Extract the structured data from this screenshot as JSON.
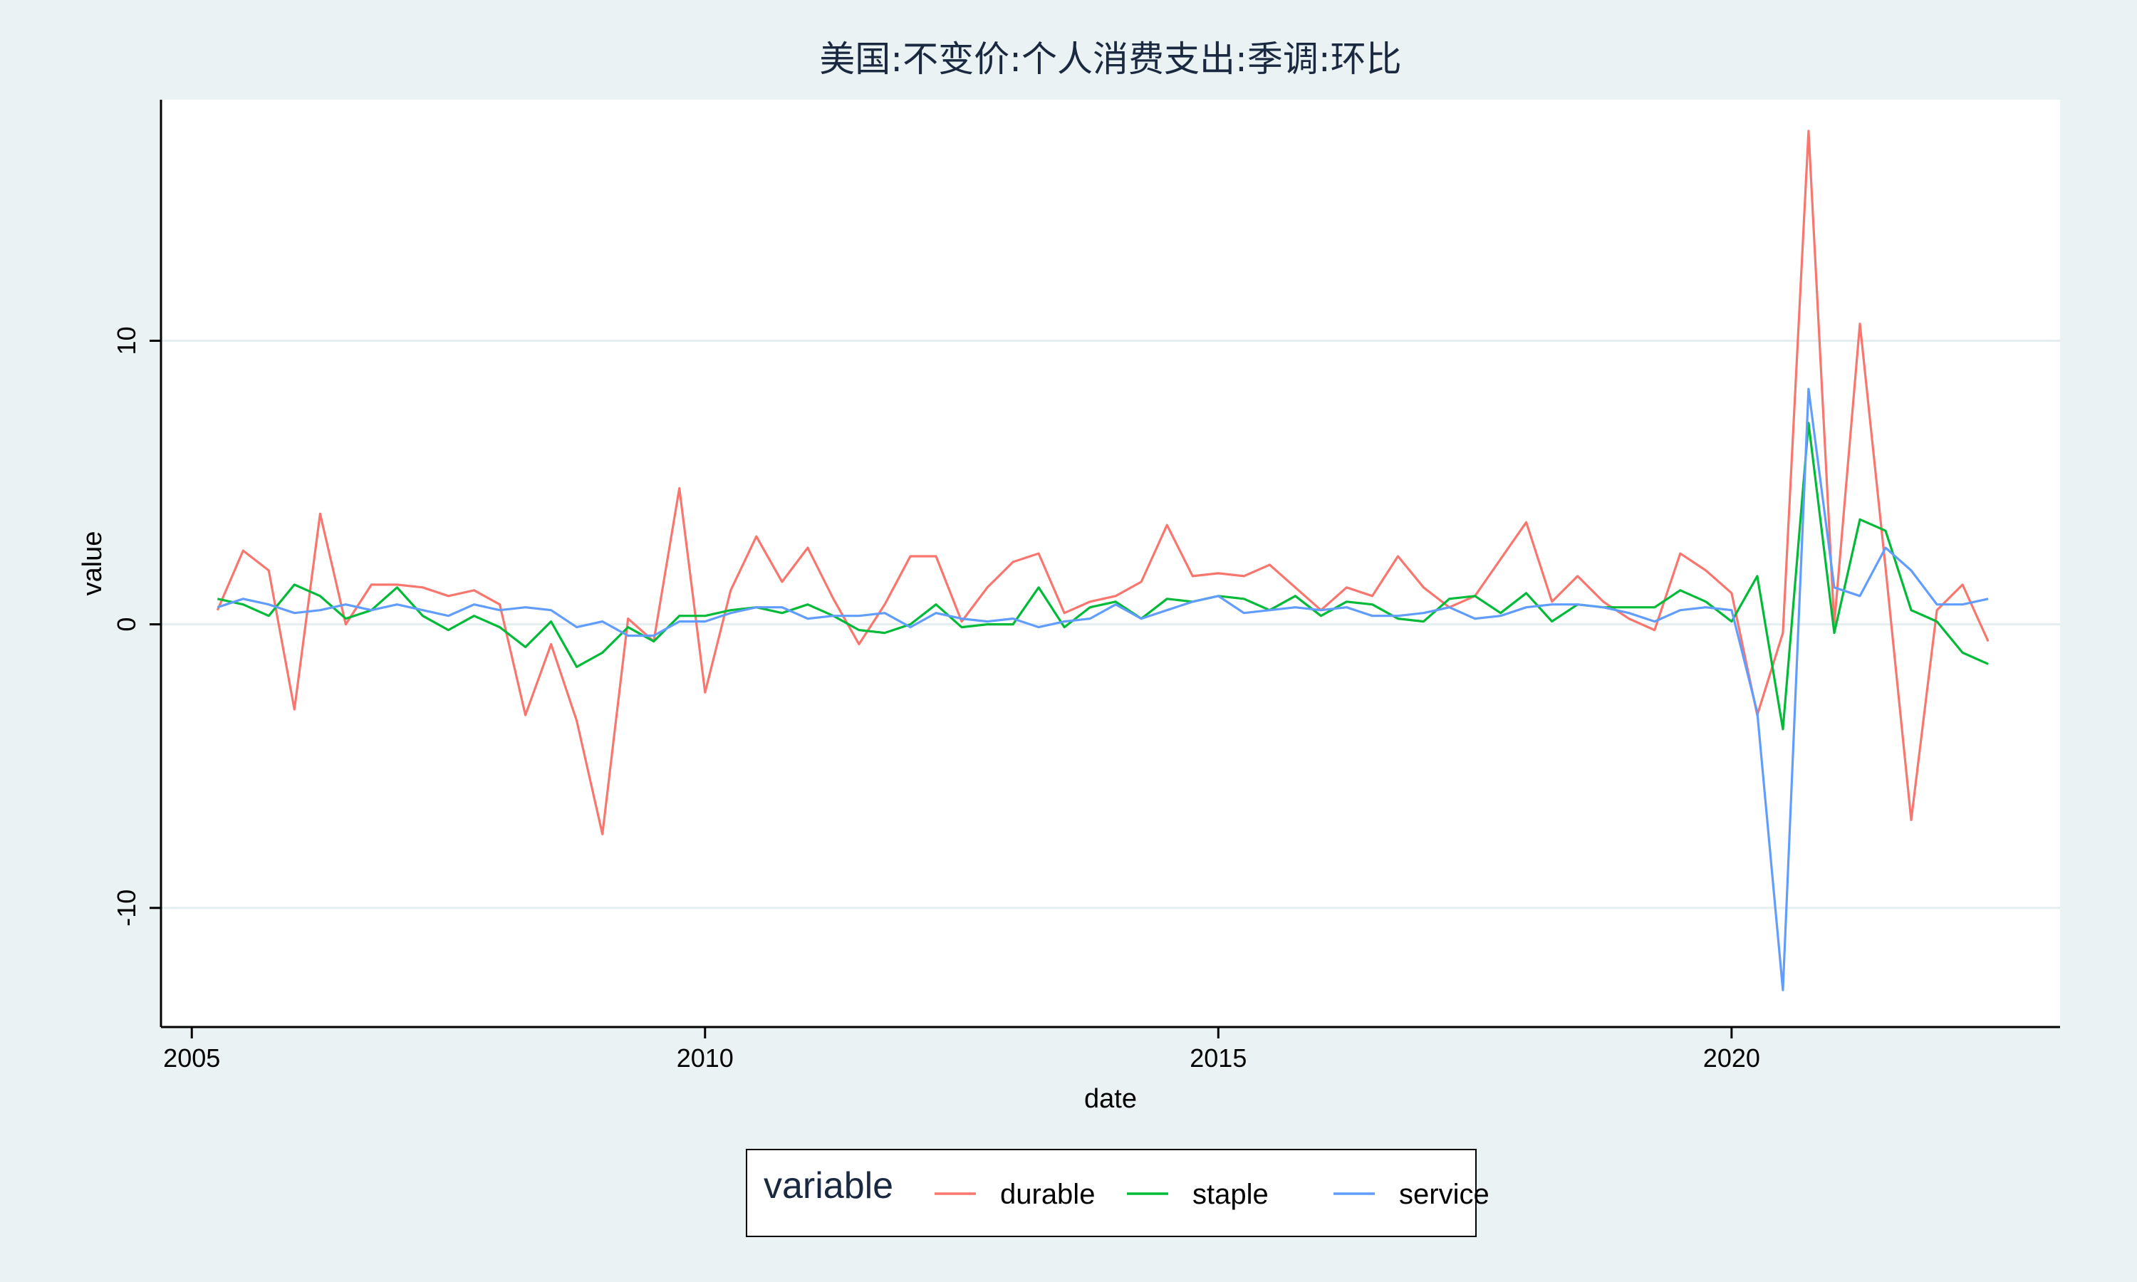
{
  "chart_data": {
    "type": "line",
    "title": "美国:不变价:个人消费支出:季调:环比",
    "xlabel": "date",
    "ylabel": "value",
    "xlim": [
      2004.7,
      2023.2
    ],
    "ylim": [
      -14.2,
      18.5
    ],
    "x_ticks": [
      2005,
      2010,
      2015,
      2020
    ],
    "y_ticks": [
      -10,
      0,
      10
    ],
    "grid": "horizontal",
    "legend": {
      "title": "variable",
      "placement": "bottom-center"
    },
    "x": [
      2005.25,
      2005.5,
      2005.75,
      2006.0,
      2006.25,
      2006.5,
      2006.75,
      2007.0,
      2007.25,
      2007.5,
      2007.75,
      2008.0,
      2008.25,
      2008.5,
      2008.75,
      2009.0,
      2009.25,
      2009.5,
      2009.75,
      2010.0,
      2010.25,
      2010.5,
      2010.75,
      2011.0,
      2011.25,
      2011.5,
      2011.75,
      2012.0,
      2012.25,
      2012.5,
      2012.75,
      2013.0,
      2013.25,
      2013.5,
      2013.75,
      2014.0,
      2014.25,
      2014.5,
      2014.75,
      2015.0,
      2015.25,
      2015.5,
      2015.75,
      2016.0,
      2016.25,
      2016.5,
      2016.75,
      2017.0,
      2017.25,
      2017.5,
      2017.75,
      2018.0,
      2018.25,
      2018.5,
      2018.75,
      2019.0,
      2019.25,
      2019.5,
      2019.75,
      2020.0,
      2020.25,
      2020.5,
      2020.75,
      2021.0,
      2021.25,
      2021.5,
      2021.75,
      2022.0,
      2022.25,
      2022.5
    ],
    "series": [
      {
        "name": "durable",
        "color": "#f8766d",
        "values": [
          0.5,
          2.6,
          1.9,
          -3.0,
          3.9,
          0.0,
          1.4,
          1.4,
          1.3,
          1.0,
          1.2,
          0.7,
          -3.2,
          -0.7,
          -3.4,
          -7.4,
          0.2,
          -0.6,
          4.8,
          -2.4,
          1.2,
          3.1,
          1.5,
          2.7,
          0.9,
          -0.7,
          0.7,
          2.4,
          2.4,
          0.1,
          1.3,
          2.2,
          2.5,
          0.4,
          0.8,
          1.0,
          1.5,
          3.5,
          1.7,
          1.8,
          1.7,
          2.1,
          1.3,
          0.5,
          1.3,
          1.0,
          2.4,
          1.3,
          0.6,
          1.0,
          2.3,
          3.6,
          0.8,
          1.7,
          0.8,
          0.2,
          -0.2,
          2.5,
          1.9,
          1.1,
          -3.2,
          -0.3,
          17.4,
          0.0,
          10.6,
          2.0,
          -6.9,
          0.5,
          1.4,
          -0.6
        ]
      },
      {
        "name": "staple",
        "color": "#00ba38",
        "values": [
          0.9,
          0.7,
          0.3,
          1.4,
          1.0,
          0.2,
          0.5,
          1.3,
          0.3,
          -0.2,
          0.3,
          -0.1,
          -0.8,
          0.1,
          -1.5,
          -1.0,
          -0.1,
          -0.6,
          0.3,
          0.3,
          0.5,
          0.6,
          0.4,
          0.7,
          0.3,
          -0.2,
          -0.3,
          0.0,
          0.7,
          -0.1,
          0.0,
          0.0,
          1.3,
          -0.1,
          0.6,
          0.8,
          0.2,
          0.9,
          0.8,
          1.0,
          0.9,
          0.5,
          1.0,
          0.3,
          0.8,
          0.7,
          0.2,
          0.1,
          0.9,
          1.0,
          0.4,
          1.1,
          0.1,
          0.7,
          0.6,
          0.6,
          0.6,
          1.2,
          0.8,
          0.1,
          1.7,
          -3.7,
          7.1,
          -0.3,
          3.7,
          3.3,
          0.5,
          0.1,
          -1.0,
          -1.4
        ]
      },
      {
        "name": "service",
        "color": "#619cff",
        "values": [
          0.6,
          0.9,
          0.7,
          0.4,
          0.5,
          0.7,
          0.5,
          0.7,
          0.5,
          0.3,
          0.7,
          0.5,
          0.6,
          0.5,
          -0.1,
          0.1,
          -0.4,
          -0.4,
          0.1,
          0.1,
          0.4,
          0.6,
          0.6,
          0.2,
          0.3,
          0.3,
          0.4,
          -0.1,
          0.4,
          0.2,
          0.1,
          0.2,
          -0.1,
          0.1,
          0.2,
          0.7,
          0.2,
          0.5,
          0.8,
          1.0,
          0.4,
          0.5,
          0.6,
          0.5,
          0.6,
          0.3,
          0.3,
          0.4,
          0.6,
          0.2,
          0.3,
          0.6,
          0.7,
          0.7,
          0.6,
          0.4,
          0.1,
          0.5,
          0.6,
          0.5,
          -3.1,
          -12.9,
          8.3,
          1.3,
          1.0,
          2.7,
          1.9,
          0.7,
          0.7,
          0.9
        ]
      }
    ]
  }
}
